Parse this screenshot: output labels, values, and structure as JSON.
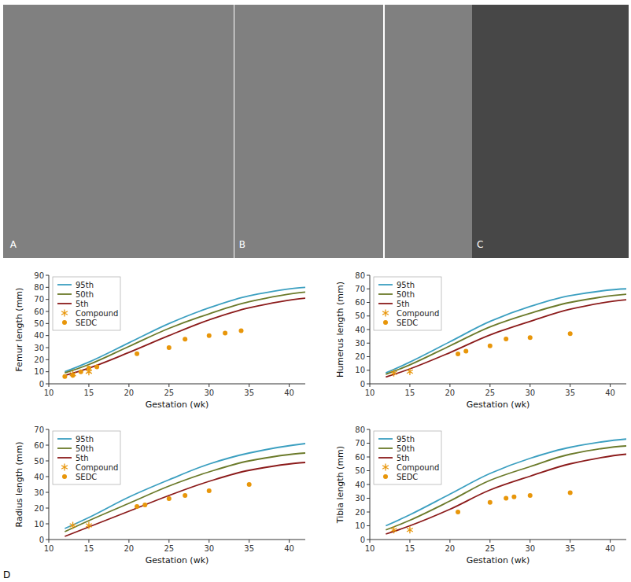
{
  "chart_data": [
    {
      "type": "line",
      "ylabel": "Femur length (mm)",
      "xlabel": "Gestation (wk)",
      "annotations": [
        "A",
        "B",
        "C",
        "D"
      ],
      "xlim": [
        10,
        42
      ],
      "xticks": [
        10,
        15,
        20,
        25,
        30,
        35,
        40
      ],
      "ylim": [
        0,
        90
      ],
      "yticks": [
        0,
        10,
        20,
        30,
        40,
        50,
        60,
        70,
        80,
        90
      ],
      "legend": "upper left",
      "series": [
        {
          "name": "95th",
          "type": "line",
          "color": "#3B9FC0",
          "x": [
            12,
            15,
            20,
            25,
            30,
            35,
            42
          ],
          "values": [
            10,
            18,
            34,
            50,
            63,
            73,
            80
          ]
        },
        {
          "name": "50th",
          "type": "line",
          "color": "#6B7A2A",
          "x": [
            12,
            15,
            20,
            25,
            30,
            35,
            42
          ],
          "values": [
            9,
            16,
            31,
            46,
            58,
            68,
            76
          ]
        },
        {
          "name": "5th",
          "type": "line",
          "color": "#8B1A1A",
          "x": [
            12,
            15,
            20,
            25,
            30,
            35,
            42
          ],
          "values": [
            7,
            13,
            26,
            40,
            53,
            63,
            71
          ]
        },
        {
          "name": "Compound",
          "type": "scatter",
          "marker": "asterisk",
          "color": "#E8960A",
          "x": [
            13,
            15
          ],
          "values": [
            8,
            10
          ]
        },
        {
          "name": "SEDC",
          "type": "scatter",
          "marker": "circle",
          "color": "#E8960A",
          "x": [
            12,
            13,
            14,
            15,
            16,
            21,
            25,
            27,
            30,
            32,
            34
          ],
          "values": [
            6,
            7,
            10,
            13,
            14,
            25,
            30,
            37,
            40,
            42,
            44
          ]
        }
      ]
    },
    {
      "type": "line",
      "ylabel": "Humerus length (mm)",
      "xlabel": "Gestation (wk)",
      "xlim": [
        10,
        42
      ],
      "xticks": [
        10,
        15,
        20,
        25,
        30,
        35,
        40
      ],
      "ylim": [
        0,
        80
      ],
      "yticks": [
        0,
        10,
        20,
        30,
        40,
        50,
        60,
        70,
        80
      ],
      "legend": "upper left",
      "series": [
        {
          "name": "95th",
          "type": "line",
          "color": "#3B9FC0",
          "x": [
            12,
            15,
            20,
            25,
            30,
            35,
            42
          ],
          "values": [
            8,
            16,
            31,
            46,
            57,
            65,
            70
          ]
        },
        {
          "name": "50th",
          "type": "line",
          "color": "#6B7A2A",
          "x": [
            12,
            15,
            20,
            25,
            30,
            35,
            42
          ],
          "values": [
            7,
            14,
            28,
            42,
            52,
            60,
            66
          ]
        },
        {
          "name": "5th",
          "type": "line",
          "color": "#8B1A1A",
          "x": [
            12,
            15,
            20,
            25,
            30,
            35,
            42
          ],
          "values": [
            5,
            11,
            23,
            36,
            46,
            55,
            62
          ]
        },
        {
          "name": "Compound",
          "type": "scatter",
          "marker": "asterisk",
          "color": "#E8960A",
          "x": [
            13,
            15
          ],
          "values": [
            8,
            9
          ]
        },
        {
          "name": "SEDC",
          "type": "scatter",
          "marker": "circle",
          "color": "#E8960A",
          "x": [
            21,
            22,
            25,
            27,
            30,
            35
          ],
          "values": [
            22,
            24,
            28,
            33,
            34,
            37
          ]
        }
      ]
    },
    {
      "type": "line",
      "ylabel": "Radius length (mm)",
      "xlabel": "Gestation (wk)",
      "xlim": [
        10,
        42
      ],
      "xticks": [
        10,
        15,
        20,
        25,
        30,
        35,
        40
      ],
      "ylim": [
        0,
        70
      ],
      "yticks": [
        0,
        10,
        20,
        30,
        40,
        50,
        60,
        70
      ],
      "legend": "upper left",
      "series": [
        {
          "name": "95th",
          "type": "line",
          "color": "#3B9FC0",
          "x": [
            12,
            15,
            20,
            25,
            30,
            35,
            42
          ],
          "values": [
            7,
            14,
            27,
            38,
            48,
            55,
            61
          ]
        },
        {
          "name": "50th",
          "type": "line",
          "color": "#6B7A2A",
          "x": [
            12,
            15,
            20,
            25,
            30,
            35,
            42
          ],
          "values": [
            5,
            12,
            23,
            34,
            43,
            50,
            55
          ]
        },
        {
          "name": "5th",
          "type": "line",
          "color": "#8B1A1A",
          "x": [
            12,
            15,
            20,
            25,
            30,
            35,
            42
          ],
          "values": [
            2,
            8,
            18,
            28,
            37,
            44,
            49
          ]
        },
        {
          "name": "Compound",
          "type": "scatter",
          "marker": "asterisk",
          "color": "#E8960A",
          "x": [
            13,
            15
          ],
          "values": [
            9,
            9
          ]
        },
        {
          "name": "SEDC",
          "type": "scatter",
          "marker": "circle",
          "color": "#E8960A",
          "x": [
            21,
            22,
            25,
            27,
            30,
            35
          ],
          "values": [
            21,
            22,
            26,
            28,
            31,
            35
          ]
        }
      ]
    },
    {
      "type": "line",
      "ylabel": "Tibia length (mm)",
      "xlabel": "Gestation (wk)",
      "xlim": [
        10,
        42
      ],
      "xticks": [
        10,
        15,
        20,
        25,
        30,
        35,
        40
      ],
      "ylim": [
        0,
        80
      ],
      "yticks": [
        0,
        10,
        20,
        30,
        40,
        50,
        60,
        70,
        80
      ],
      "legend": "upper left",
      "series": [
        {
          "name": "95th",
          "type": "line",
          "color": "#3B9FC0",
          "x": [
            12,
            15,
            20,
            25,
            30,
            35,
            42
          ],
          "values": [
            10,
            18,
            33,
            48,
            59,
            67,
            73
          ]
        },
        {
          "name": "50th",
          "type": "line",
          "color": "#6B7A2A",
          "x": [
            12,
            15,
            20,
            25,
            30,
            35,
            42
          ],
          "values": [
            7,
            14,
            28,
            43,
            53,
            62,
            68
          ]
        },
        {
          "name": "5th",
          "type": "line",
          "color": "#8B1A1A",
          "x": [
            12,
            15,
            20,
            25,
            30,
            35,
            42
          ],
          "values": [
            4,
            10,
            22,
            36,
            46,
            55,
            62
          ]
        },
        {
          "name": "Compound",
          "type": "scatter",
          "marker": "asterisk",
          "color": "#E8960A",
          "x": [
            13,
            15
          ],
          "values": [
            7,
            7
          ]
        },
        {
          "name": "SEDC",
          "type": "scatter",
          "marker": "circle",
          "color": "#E8960A",
          "x": [
            21,
            25,
            27,
            28,
            30,
            35
          ],
          "values": [
            20,
            27,
            30,
            31,
            32,
            34
          ]
        }
      ]
    }
  ]
}
